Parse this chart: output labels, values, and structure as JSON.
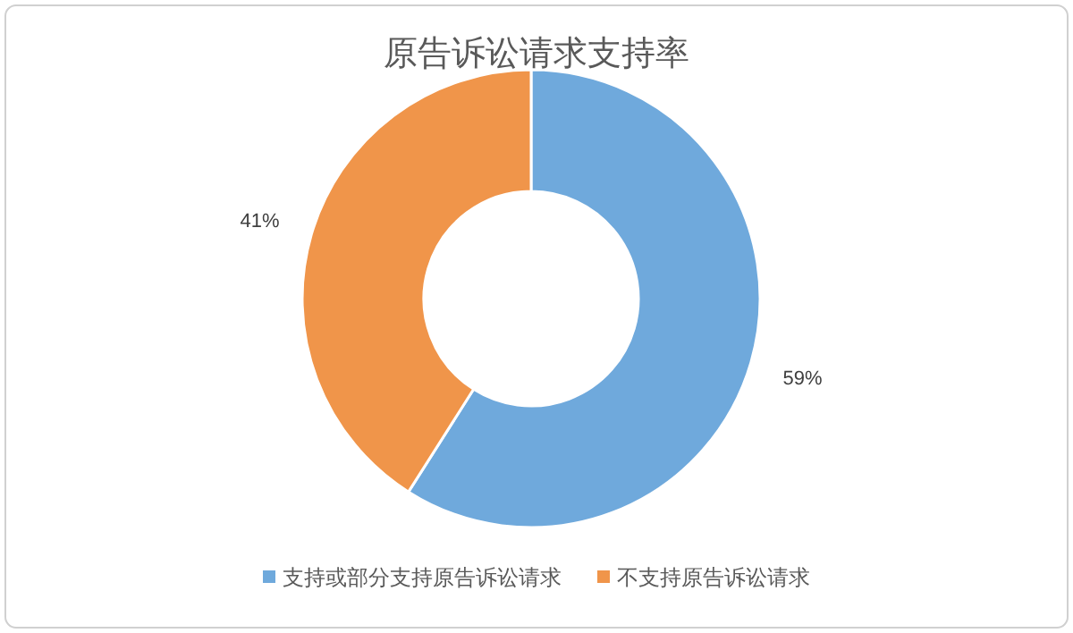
{
  "chart_data": {
    "type": "donut",
    "title": "原告诉讼请求支持率",
    "categories": [
      "支持或部分支持原告诉讼请求",
      "不支持原告诉讼请求"
    ],
    "values": [
      59,
      41
    ],
    "colors": [
      "#6fa9dc",
      "#f0954a"
    ],
    "value_labels": [
      "59%",
      "41%"
    ],
    "legend": "bottom"
  }
}
